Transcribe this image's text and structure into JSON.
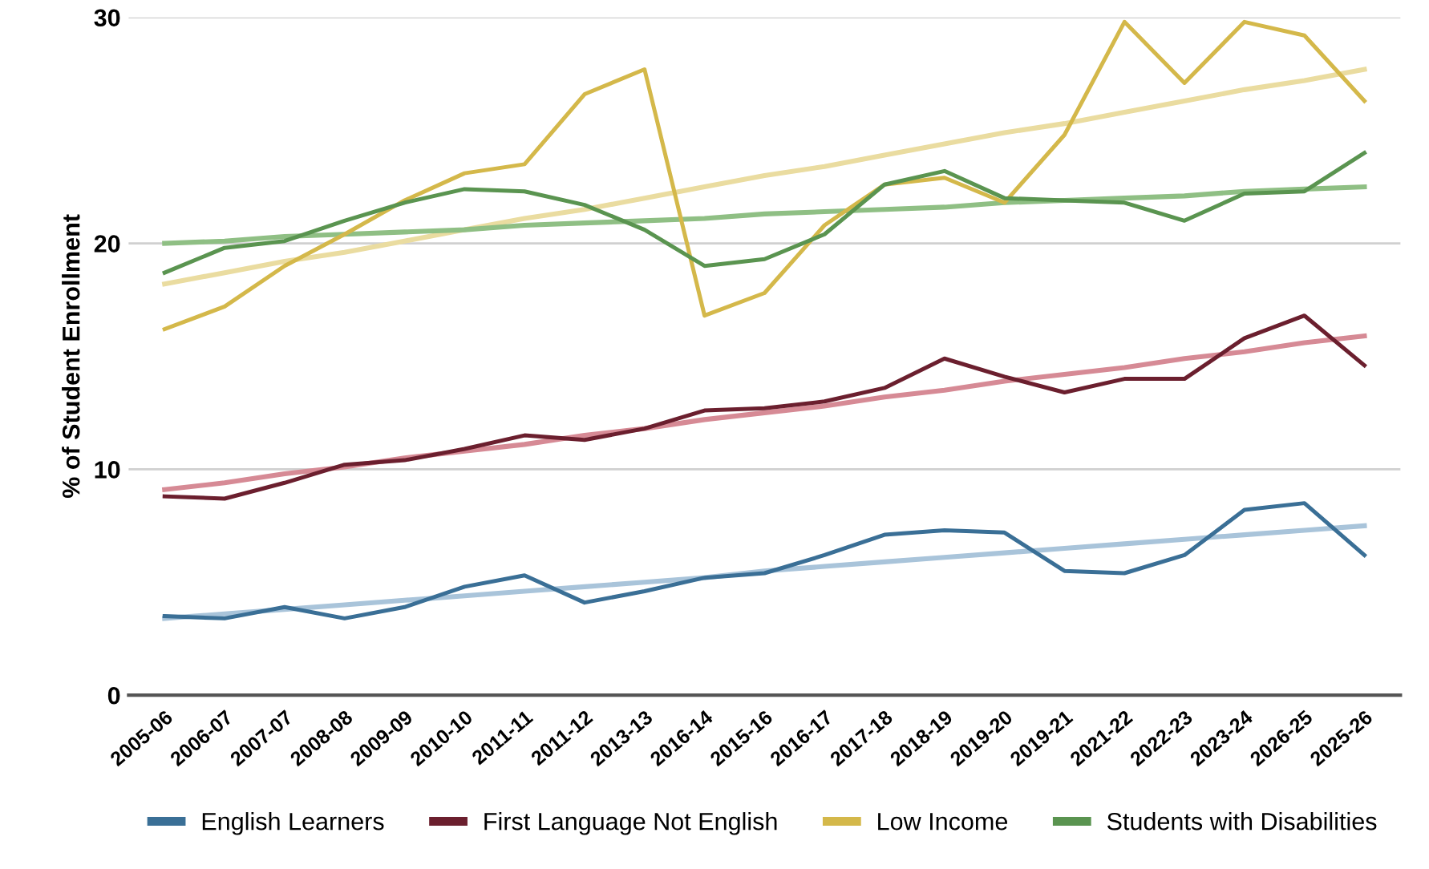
{
  "chart_data": {
    "type": "line",
    "ylabel": "% of Student Enrollment",
    "categories": [
      "2005-06",
      "2006-07",
      "2007-07",
      "2008-08",
      "2009-09",
      "2010-10",
      "2011-11",
      "2011-12",
      "2013-13",
      "2016-14",
      "2015-16",
      "2016-17",
      "2017-18",
      "2018-19",
      "2019-20",
      "2019-21",
      "2021-22",
      "2022-23",
      "2023-24",
      "2026-25",
      "2025-26"
    ],
    "series": [
      {
        "name": "English Learners",
        "color": "#3a6f96",
        "values": [
          3.5,
          3.4,
          3.9,
          3.4,
          3.9,
          4.8,
          5.3,
          4.1,
          4.6,
          5.2,
          5.4,
          6.2,
          7.1,
          7.3,
          7.2,
          5.5,
          5.4,
          6.2,
          8.2,
          8.5,
          6.2
        ]
      },
      {
        "name": "First Language Not English",
        "color": "#6b1f2e",
        "values": [
          8.8,
          8.7,
          9.4,
          10.2,
          10.4,
          10.9,
          11.5,
          11.3,
          11.8,
          12.6,
          12.7,
          13.0,
          13.6,
          14.9,
          14.1,
          13.4,
          14.0,
          14.0,
          15.8,
          16.8,
          14.6
        ]
      },
      {
        "name": "Low Income",
        "color": "#d4b84a",
        "values": [
          16.2,
          17.2,
          19.0,
          20.4,
          21.9,
          23.1,
          23.5,
          26.6,
          27.7,
          16.8,
          17.8,
          20.8,
          22.6,
          22.9,
          21.8,
          24.8,
          29.8,
          27.1,
          29.8,
          29.2,
          26.3
        ]
      },
      {
        "name": "Students with Disabilities",
        "color": "#5a9450",
        "values": [
          18.7,
          19.8,
          20.1,
          21.0,
          21.8,
          22.4,
          22.3,
          21.7,
          20.6,
          19.0,
          19.3,
          20.4,
          22.6,
          23.2,
          22.0,
          21.9,
          21.8,
          21.0,
          22.2,
          22.3,
          24.0
        ]
      },
      {
        "type": "line",
        "color": "#a9c4da",
        "values": [
          3.4,
          3.6,
          3.8,
          4.0,
          4.2,
          4.4,
          4.6,
          4.8,
          5.0,
          5.2,
          5.5,
          5.7,
          5.9,
          6.1,
          6.3,
          6.5,
          6.7,
          6.9,
          7.1,
          7.3,
          7.5
        ]
      },
      {
        "type": "line",
        "color": "#d68a95",
        "values": [
          9.1,
          9.4,
          9.8,
          10.1,
          10.5,
          10.8,
          11.1,
          11.5,
          11.8,
          12.2,
          12.5,
          12.8,
          13.2,
          13.5,
          13.9,
          14.2,
          14.5,
          14.9,
          15.2,
          15.6,
          15.9
        ]
      },
      {
        "type": "line",
        "color": "#eadca0",
        "values": [
          18.2,
          18.7,
          19.2,
          19.6,
          20.1,
          20.6,
          21.1,
          21.5,
          22.0,
          22.5,
          23.0,
          23.4,
          23.9,
          24.4,
          24.9,
          25.3,
          25.8,
          26.3,
          26.8,
          27.2,
          27.7
        ]
      },
      {
        "type": "line",
        "color": "#8fbf84",
        "values": [
          20.0,
          20.1,
          20.3,
          20.4,
          20.5,
          20.6,
          20.8,
          20.9,
          21.0,
          21.1,
          21.3,
          21.4,
          21.5,
          21.6,
          21.8,
          21.9,
          22.0,
          22.1,
          22.3,
          22.4,
          22.5
        ]
      }
    ],
    "ylim": [
      0,
      30
    ],
    "yticks": [
      0,
      10,
      20,
      30
    ],
    "grid": "y",
    "legend": "bottom",
    "marker": "none",
    "line_style": "solid"
  }
}
